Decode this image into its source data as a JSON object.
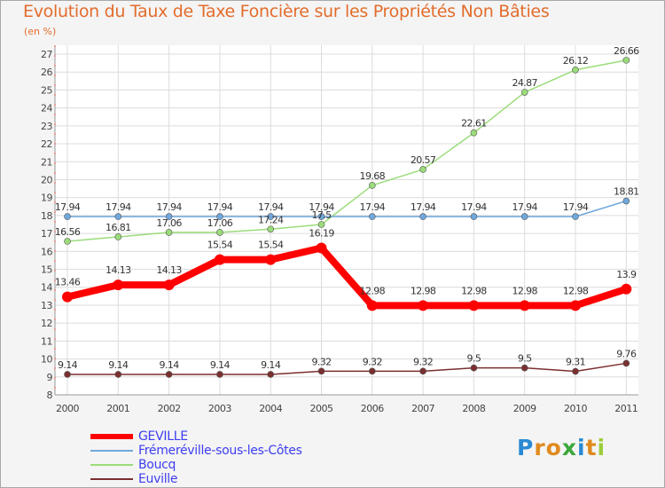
{
  "chart_data": {
    "type": "line",
    "title": "Evolution du Taux de Taxe Foncière sur les Propriétés Non Bâties",
    "subtitle": "(en %)",
    "xlabel": "",
    "ylabel": "",
    "ylim": [
      8,
      27
    ],
    "categories": [
      "2000",
      "2001",
      "2002",
      "2003",
      "2004",
      "2005",
      "2006",
      "2007",
      "2008",
      "2009",
      "2010",
      "2011"
    ],
    "yticks": [
      "8",
      "9",
      "10",
      "11",
      "12",
      "13",
      "14",
      "15",
      "16",
      "17",
      "18",
      "19",
      "20",
      "21",
      "22",
      "23",
      "24",
      "25",
      "26",
      "27"
    ],
    "series": [
      {
        "name": "GEVILLE",
        "color": "#ff0000",
        "values": [
          13.46,
          14.13,
          14.13,
          15.54,
          15.54,
          16.19,
          12.98,
          12.98,
          12.98,
          12.98,
          12.98,
          13.9
        ],
        "labels": [
          "13.46",
          "14.13",
          "14.13",
          "15.54",
          "15.54",
          "16.19",
          "12.98",
          "12.98",
          "12.98",
          "12.98",
          "12.98",
          "13.9"
        ]
      },
      {
        "name": "Frémeréville-sous-les-Côtes",
        "color": "#6fa8dc",
        "values": [
          17.94,
          17.94,
          17.94,
          17.94,
          17.94,
          17.94,
          17.94,
          17.94,
          17.94,
          17.94,
          17.94,
          18.81
        ],
        "labels": [
          "17.94",
          "17.94",
          "17.94",
          "17.94",
          "17.94",
          "17.94",
          "17.94",
          "17.94",
          "17.94",
          "17.94",
          "17.94",
          "18.81"
        ]
      },
      {
        "name": "Boucq",
        "color": "#9bdc7a",
        "values": [
          16.56,
          16.81,
          17.06,
          17.06,
          17.24,
          17.5,
          19.68,
          20.57,
          22.61,
          24.87,
          26.12,
          26.66
        ],
        "labels": [
          "16.56",
          "16.81",
          "17.06",
          "17.06",
          "17.24",
          "17.5",
          "19.68",
          "20.57",
          "22.61",
          "24.87",
          "26.12",
          "26.66"
        ]
      },
      {
        "name": "Euville",
        "color": "#7b2f2f",
        "values": [
          9.14,
          9.14,
          9.14,
          9.14,
          9.14,
          9.32,
          9.32,
          9.32,
          9.5,
          9.5,
          9.31,
          9.76
        ],
        "labels": [
          "9.14",
          "9.14",
          "9.14",
          "9.14",
          "9.14",
          "9.32",
          "9.32",
          "9.32",
          "9.5",
          "9.5",
          "9.31",
          "9.76"
        ]
      }
    ],
    "legend": [
      "GEVILLE",
      "Frémeréville-sous-les-Côtes",
      "Boucq",
      "Euville"
    ],
    "legend_position": "bottom-left"
  },
  "branding": {
    "logo_letters": [
      "P",
      "r",
      "o",
      "x",
      "i",
      "t",
      "i"
    ],
    "logo_colors": [
      "#2a8ad4",
      "#e08a1e",
      "#e08a1e",
      "#3aa83a",
      "#2a8ad4",
      "#e08a1e",
      "#9bcd3a"
    ]
  }
}
